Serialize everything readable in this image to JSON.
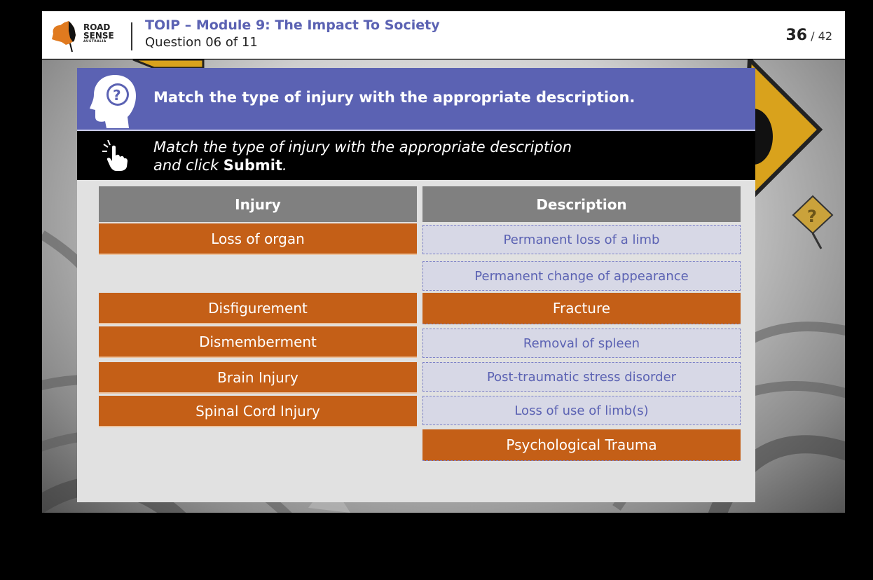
{
  "header": {
    "logo_lines": [
      "ROAD",
      "SENSE",
      "AUSTRALIA"
    ],
    "module_title": "TOIP – Module 9: The Impact To Society",
    "question_counter": "Question 06 of 11",
    "page_current": "36",
    "page_total": "/ 42"
  },
  "card": {
    "title": "Match the type of injury with the appropriate description.",
    "instruction_prefix": "Match the type of injury with the appropriate description",
    "instruction_line2": "and click",
    "instruction_bold": "Submit",
    "instruction_end": "."
  },
  "columns": {
    "injury_header": "Injury",
    "description_header": "Description"
  },
  "injuries": [
    "Loss of organ",
    "Disfigurement",
    "Dismemberment",
    "Brain Injury",
    "Spinal Cord Injury"
  ],
  "descriptions": [
    "Permanent loss of a limb",
    "Permanent change of appearance",
    "Fracture",
    "Removal of spleen",
    "Post-traumatic stress disorder",
    "Loss of use of limb(s)",
    "Psychological Trauma"
  ],
  "colors": {
    "brand": "#5b62b3",
    "item_orange": "#c45f17",
    "header_grey": "#808080",
    "slot_border": "#7b80c7"
  },
  "icons": [
    "road-sense-logo",
    "head-question-icon",
    "hand-click-icon"
  ]
}
